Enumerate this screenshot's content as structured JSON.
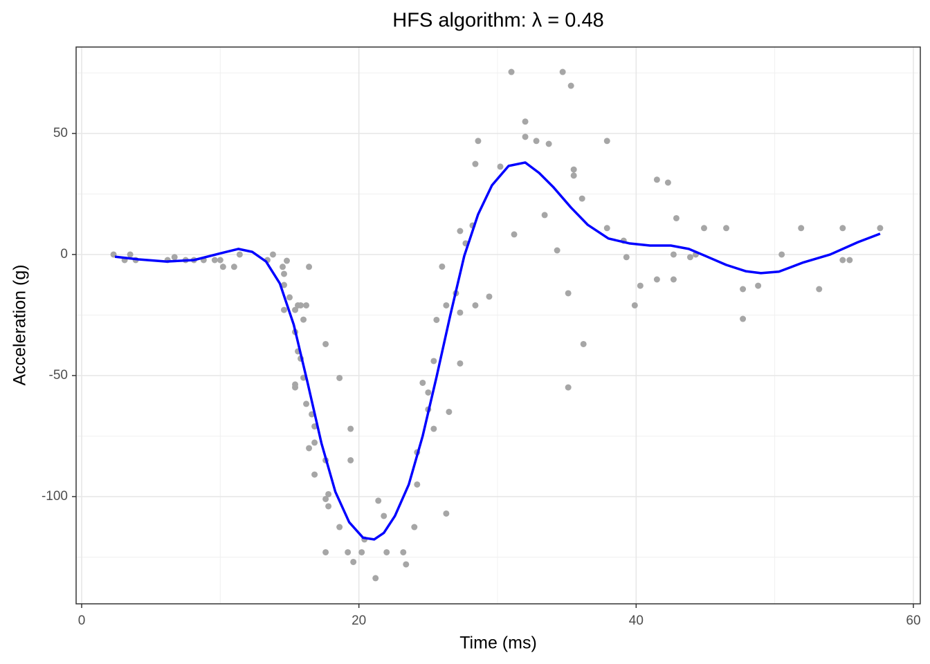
{
  "chart_data": {
    "type": "scatter",
    "title": "HFS algorithm: λ = 0.48",
    "x_label": "Time (ms)",
    "y_label": "Acceleration (g)",
    "xlim": [
      -0.4,
      60.5
    ],
    "ylim": [
      -144.3,
      85.7
    ],
    "xticks": [
      0,
      20,
      40,
      60
    ],
    "yticks": [
      -100,
      -50,
      0,
      50
    ],
    "xminor": [
      10,
      30,
      50
    ],
    "yminor": [
      -125,
      -75,
      -25,
      25,
      75
    ],
    "grid": true,
    "points": {
      "color": "#a6a6a6",
      "x": [
        2.3,
        3.1,
        3.5,
        3.9,
        6.2,
        6.7,
        7.5,
        8.1,
        8.8,
        9.6,
        10.0,
        10.2,
        11.0,
        11.4,
        13.4,
        13.8,
        14.5,
        14.6,
        14.6,
        14.8,
        14.6,
        15.0,
        15.4,
        15.6,
        15.8,
        16.2,
        16.0,
        15.4,
        15.6,
        15.8,
        16.0,
        15.4,
        15.4,
        16.2,
        16.4,
        16.4,
        16.6,
        16.8,
        16.8,
        16.8,
        17.6,
        17.6,
        17.6,
        17.8,
        17.8,
        17.6,
        18.6,
        18.6,
        19.2,
        19.4,
        19.4,
        19.6,
        20.2,
        20.4,
        21.2,
        21.4,
        21.8,
        22.0,
        23.2,
        23.4,
        24.0,
        24.2,
        24.2,
        24.6,
        25.0,
        25.0,
        25.4,
        25.4,
        25.6,
        26.0,
        26.3,
        26.3,
        26.5,
        27.0,
        27.3,
        27.3,
        27.3,
        27.7,
        28.2,
        28.4,
        28.4,
        28.6,
        29.4,
        30.2,
        31.0,
        31.2,
        32.0,
        32.0,
        32.8,
        33.4,
        33.7,
        34.3,
        34.7,
        35.1,
        35.1,
        35.3,
        35.5,
        35.5,
        36.1,
        36.2,
        37.9,
        37.9,
        39.1,
        39.3,
        39.9,
        40.3,
        41.5,
        41.5,
        42.3,
        42.7,
        42.7,
        42.9,
        43.9,
        44.3,
        44.9,
        46.5,
        47.7,
        47.7,
        48.8,
        50.5,
        51.9,
        53.2,
        54.9,
        54.9,
        55.4,
        57.6
      ],
      "y": [
        0,
        -2.3,
        0,
        -2.3,
        -2.3,
        -1.1,
        -2.3,
        -2.3,
        -2.3,
        -2.3,
        -2.3,
        -5.1,
        -5.1,
        0,
        -2.3,
        0,
        -5.1,
        -8,
        -12.6,
        -2.6,
        -22.9,
        -17.7,
        -22.9,
        -21,
        -21,
        -21,
        -26.9,
        -32,
        -40,
        -43,
        -50.9,
        -53.7,
        -54.9,
        -61.7,
        -5.1,
        -80,
        -66,
        -71,
        -77.7,
        -90.9,
        -37,
        -85,
        -101,
        -99,
        -104,
        -123,
        -51,
        -112.6,
        -123,
        -72,
        -85,
        -127,
        -123,
        -117.7,
        -133.7,
        -101.7,
        -108,
        -123,
        -123,
        -128,
        -112.6,
        -95,
        -81.7,
        -53,
        -57,
        -64,
        -72,
        -44,
        -27,
        -5,
        -21,
        -107,
        -65,
        -16,
        -45,
        -24,
        9.7,
        4.6,
        12,
        -21,
        37.4,
        46.9,
        -17.4,
        36.3,
        75.4,
        8.3,
        54.9,
        48.6,
        46.9,
        16.3,
        45.7,
        1.7,
        75.4,
        -16,
        -54.9,
        69.7,
        35.1,
        32.6,
        23.1,
        -37,
        46.9,
        10.9,
        5.7,
        -1.1,
        -21,
        -12.9,
        30.9,
        -10.3,
        29.7,
        -10.3,
        0,
        15,
        -1.1,
        0,
        10.9,
        10.9,
        -14.3,
        -26.6,
        -12.9,
        0,
        10.9,
        -14.3,
        10.9,
        -2.3,
        -2.3,
        10.9
      ]
    },
    "smooth": {
      "color": "#0000ff",
      "x": [
        2.4,
        4.1,
        6.1,
        8.1,
        10.1,
        11.3,
        12.3,
        13.3,
        14.3,
        15.3,
        16.3,
        17.3,
        18.3,
        19.3,
        20.3,
        21.1,
        21.8,
        22.6,
        23.6,
        24.6,
        25.6,
        26.6,
        27.6,
        28.6,
        29.6,
        30.8,
        32.0,
        33.0,
        34.0,
        35.3,
        36.5,
        38.0,
        39.5,
        41.0,
        42.5,
        43.8,
        45.0,
        46.5,
        47.9,
        49.0,
        50.3,
        52.0,
        54.0,
        56.0,
        57.6
      ],
      "y": [
        -0.9,
        -2,
        -2.9,
        -2.3,
        0.6,
        2.3,
        1.1,
        -2.9,
        -12,
        -29,
        -53,
        -78,
        -98,
        -110.6,
        -117,
        -117.7,
        -115,
        -108,
        -95,
        -75,
        -50.6,
        -24.9,
        -0.6,
        16.6,
        28.6,
        36.6,
        38,
        33.7,
        28,
        19.4,
        12.3,
        6.6,
        4.6,
        3.7,
        3.7,
        2.3,
        -0.6,
        -4.3,
        -6.9,
        -7.7,
        -7.1,
        -3.4,
        0,
        5.1,
        8.6
      ]
    }
  }
}
